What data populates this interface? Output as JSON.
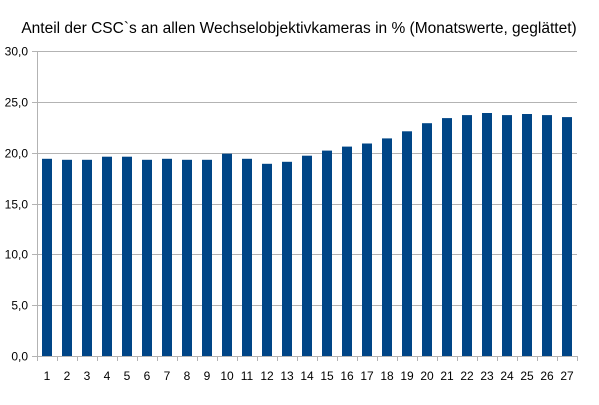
{
  "chart_data": {
    "type": "bar",
    "title": "Anteil der CSC`s an allen Wechselobjektivkameras in % (Monatswerte, geglättet)",
    "xlabel": "",
    "ylabel": "",
    "categories": [
      "1",
      "2",
      "3",
      "4",
      "5",
      "6",
      "7",
      "8",
      "9",
      "10",
      "11",
      "12",
      "13",
      "14",
      "15",
      "16",
      "17",
      "18",
      "19",
      "20",
      "21",
      "22",
      "23",
      "24",
      "25",
      "26",
      "27"
    ],
    "values": [
      19.4,
      19.3,
      19.3,
      19.6,
      19.6,
      19.3,
      19.4,
      19.3,
      19.3,
      19.9,
      19.4,
      18.9,
      19.1,
      19.7,
      20.2,
      20.6,
      20.9,
      21.4,
      22.1,
      22.9,
      23.4,
      23.7,
      23.9,
      23.7,
      23.8,
      23.7,
      23.5
    ],
    "ylim": [
      0,
      30
    ],
    "yticks": [
      "0,0",
      "5,0",
      "10,0",
      "15,0",
      "20,0",
      "25,0",
      "30,0"
    ],
    "grid": true,
    "legend": "none",
    "bar_color": "#004586",
    "grid_color": "#b3b3b3"
  }
}
